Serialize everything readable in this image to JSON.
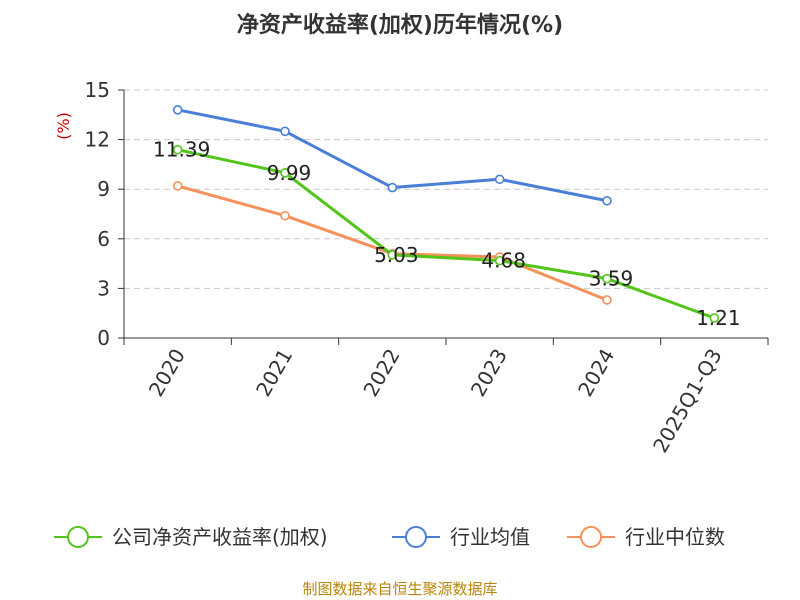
{
  "chart_data": {
    "type": "line",
    "title": "净资产收益率(加权)历年情况(%)",
    "ylabel": "(%)",
    "categories": [
      "2020",
      "2021",
      "2022",
      "2023",
      "2024",
      "2025Q1-Q3"
    ],
    "ylim": [
      0,
      15
    ],
    "yticks": [
      0,
      3,
      6,
      9,
      12,
      15
    ],
    "grid": true,
    "legend_position": "bottom",
    "series": [
      {
        "name": "公司净资产收益率(加权)",
        "color": "#52c41a",
        "values": [
          11.39,
          9.99,
          5.03,
          4.68,
          3.59,
          1.21
        ],
        "labels": [
          "11.39",
          "9.99",
          "5.03",
          "4.68",
          "3.59",
          "1.21"
        ]
      },
      {
        "name": "行业均值",
        "color": "#4a7fd8",
        "values": [
          13.8,
          12.5,
          9.1,
          9.6,
          8.3,
          null
        ]
      },
      {
        "name": "行业中位数",
        "color": "#f5915a",
        "values": [
          9.2,
          7.4,
          5.1,
          4.9,
          2.3,
          null
        ]
      }
    ]
  },
  "source": "制图数据来自恒生聚源数据库"
}
